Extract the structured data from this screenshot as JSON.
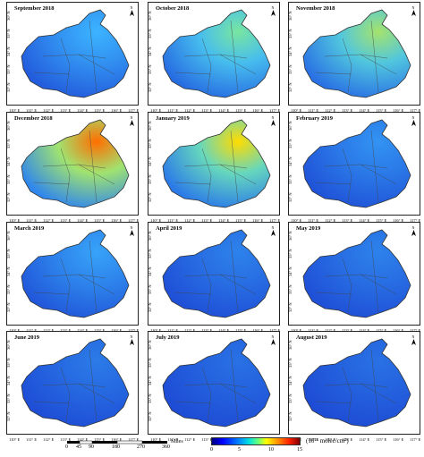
{
  "panels": [
    {
      "title": "September 2018",
      "level": 0.35
    },
    {
      "title": "October 2018",
      "level": 0.55
    },
    {
      "title": "November 2018",
      "level": 0.6
    },
    {
      "title": "December 2018",
      "level": 0.85
    },
    {
      "title": "January 2019",
      "level": 0.7
    },
    {
      "title": "February 2019",
      "level": 0.25
    },
    {
      "title": "March 2019",
      "level": 0.3
    },
    {
      "title": "April 2019",
      "level": 0.2
    },
    {
      "title": "May 2019",
      "level": 0.2
    },
    {
      "title": "June 2019",
      "level": 0.18
    },
    {
      "title": "July 2019",
      "level": 0.15
    },
    {
      "title": "August 2019",
      "level": 0.15
    }
  ],
  "lat_ticks": [
    "32° N",
    "33° N",
    "34° N",
    "35° N",
    "36° N"
  ],
  "lon_ticks": [
    "110° E",
    "111° E",
    "112° E",
    "113° E",
    "114° E",
    "115° E",
    "116° E",
    "117° E"
  ],
  "north_label": "N",
  "scale_bar": {
    "ticks": [
      "0",
      "45",
      "90",
      "180",
      "270",
      "360"
    ],
    "unit": "Miles"
  },
  "colorbar": {
    "ticks": [
      "0",
      "5",
      "10",
      "15"
    ],
    "unit": "(10¹⁵ molec/cm²)"
  },
  "colors": {
    "low": "#1a3fd0",
    "mid": "#3fd0ff",
    "high": "#ffd000",
    "peak": "#d01010"
  }
}
